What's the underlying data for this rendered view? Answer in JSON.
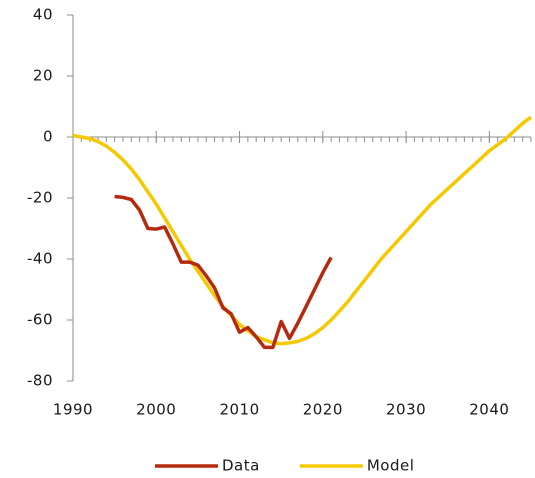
{
  "chart_data": {
    "type": "line",
    "x": [
      1990,
      1991,
      1992,
      1993,
      1994,
      1995,
      1996,
      1997,
      1998,
      1999,
      2000,
      2001,
      2002,
      2003,
      2004,
      2005,
      2006,
      2007,
      2008,
      2009,
      2010,
      2011,
      2012,
      2013,
      2014,
      2015,
      2016,
      2017,
      2018,
      2019,
      2020,
      2021,
      2022,
      2023,
      2024,
      2025,
      2026,
      2027,
      2028,
      2029,
      2030,
      2031,
      2032,
      2033,
      2034,
      2035,
      2036,
      2037,
      2038,
      2039,
      2040,
      2041,
      2042,
      2043,
      2044,
      2045
    ],
    "series": [
      {
        "name": "Data",
        "color": "#b52a0c",
        "values": [
          null,
          null,
          null,
          null,
          null,
          -19.5,
          -19.8,
          -20.5,
          -24,
          -30,
          -30.2,
          -29.5,
          -35,
          -41,
          -41,
          -42,
          -45.5,
          -49.5,
          -56,
          -58,
          -64,
          -62.5,
          -65.5,
          -69,
          -69,
          -60.5,
          -66,
          -61,
          -55.5,
          -50,
          -44.5,
          -39.5,
          null,
          null,
          null,
          null,
          null,
          null,
          null,
          null,
          null,
          null,
          null,
          null,
          null,
          null,
          null,
          null,
          null,
          null,
          null,
          null,
          null,
          null,
          null,
          null
        ]
      },
      {
        "name": "Model",
        "color": "#f5c800",
        "values": [
          0.5,
          0,
          -0.5,
          -1.5,
          -3,
          -5,
          -7.5,
          -10.5,
          -14,
          -18,
          -22,
          -26.5,
          -31,
          -35.5,
          -40,
          -44,
          -48,
          -52,
          -55.5,
          -58.5,
          -61.5,
          -63.5,
          -65.5,
          -66.5,
          -67.5,
          -67.8,
          -67.5,
          -67,
          -66,
          -64.5,
          -62.5,
          -60,
          -57,
          -54,
          -50.5,
          -47,
          -43.5,
          -40,
          -37,
          -34,
          -31,
          -28,
          -25,
          -22,
          -19.5,
          -17,
          -14.5,
          -12,
          -9.5,
          -7,
          -4.5,
          -2.5,
          -0.5,
          2,
          4.5,
          6.5
        ]
      }
    ],
    "xlim": [
      1990,
      2045
    ],
    "xticks": [
      1990,
      2000,
      2010,
      2020,
      2030,
      2040
    ],
    "ylim": [
      -80,
      40
    ],
    "yticks": [
      40,
      20,
      0,
      -20,
      -40,
      -60,
      -80
    ],
    "legend": "bottom"
  }
}
